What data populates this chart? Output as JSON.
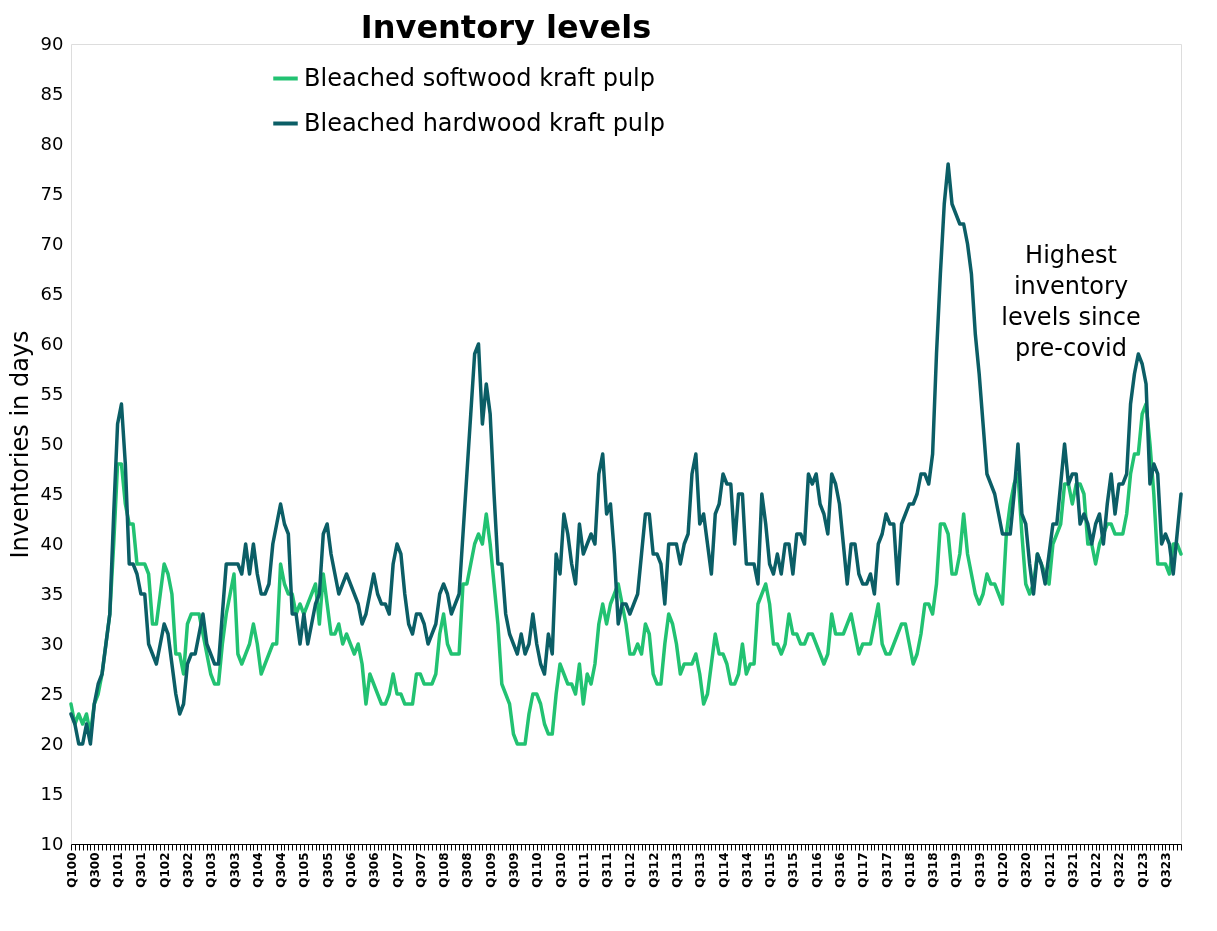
{
  "chart_data": {
    "type": "line",
    "title": "Inventory levels",
    "ylabel": "Inventories in days",
    "ylim": [
      10,
      90
    ],
    "yticks": [
      10,
      15,
      20,
      25,
      30,
      35,
      40,
      45,
      50,
      55,
      60,
      65,
      70,
      75,
      80,
      85,
      90
    ],
    "categories": [
      "Q100",
      null,
      null,
      null,
      null,
      null,
      "Q300",
      null,
      null,
      null,
      null,
      null,
      "Q101",
      null,
      null,
      null,
      null,
      null,
      "Q301",
      null,
      null,
      null,
      null,
      null,
      "Q102",
      null,
      null,
      null,
      null,
      null,
      "Q302",
      null,
      null,
      null,
      null,
      null,
      "Q103",
      null,
      null,
      null,
      null,
      null,
      "Q303",
      null,
      null,
      null,
      null,
      null,
      "Q104",
      null,
      null,
      null,
      null,
      null,
      "Q304",
      null,
      null,
      null,
      null,
      null,
      "Q105",
      null,
      null,
      null,
      null,
      null,
      "Q305",
      null,
      null,
      null,
      null,
      null,
      "Q106",
      null,
      null,
      null,
      null,
      null,
      "Q306",
      null,
      null,
      null,
      null,
      null,
      "Q107",
      null,
      null,
      null,
      null,
      null,
      "Q307",
      null,
      null,
      null,
      null,
      null,
      "Q108",
      null,
      null,
      null,
      null,
      null,
      "Q308",
      null,
      null,
      null,
      null,
      null,
      "Q109",
      null,
      null,
      null,
      null,
      null,
      "Q309",
      null,
      null,
      null,
      null,
      null,
      "Q110",
      null,
      null,
      null,
      null,
      null,
      "Q310",
      null,
      null,
      null,
      null,
      null,
      "Q111",
      null,
      null,
      null,
      null,
      null,
      "Q311",
      null,
      null,
      null,
      null,
      null,
      "Q112",
      null,
      null,
      null,
      null,
      null,
      "Q312",
      null,
      null,
      null,
      null,
      null,
      "Q113",
      null,
      null,
      null,
      null,
      null,
      "Q313",
      null,
      null,
      null,
      null,
      null,
      "Q114",
      null,
      null,
      null,
      null,
      null,
      "Q314",
      null,
      null,
      null,
      null,
      null,
      "Q115",
      null,
      null,
      null,
      null,
      null,
      "Q315",
      null,
      null,
      null,
      null,
      null,
      "Q116",
      null,
      null,
      null,
      null,
      null,
      "Q316",
      null,
      null,
      null,
      null,
      null,
      "Q117",
      null,
      null,
      null,
      null,
      null,
      "Q317",
      null,
      null,
      null,
      null,
      null,
      "Q118",
      null,
      null,
      null,
      null,
      null,
      "Q318",
      null,
      null,
      null,
      null,
      null,
      "Q119",
      null,
      null,
      null,
      null,
      null,
      "Q319",
      null,
      null,
      null,
      null,
      null,
      "Q120",
      null,
      null,
      null,
      null,
      null,
      "Q320",
      null,
      null,
      null,
      null,
      null,
      "Q121",
      null,
      null,
      null,
      null,
      null,
      "Q321",
      null,
      null,
      null,
      null,
      null,
      "Q122",
      null,
      null,
      null,
      null,
      null,
      "Q322",
      null,
      null,
      null,
      null,
      null,
      "Q123",
      null,
      null,
      null,
      null,
      null,
      "Q323",
      null,
      null,
      null,
      null
    ],
    "grid": false,
    "legend": "top",
    "annotations": [
      "Highest inventory levels since pre-covid"
    ],
    "series": [
      {
        "name": "Bleached softwood kraft pulp",
        "color": "#22c272",
        "values": [
          24,
          22,
          23,
          22,
          23,
          21,
          24,
          25,
          27,
          30,
          33,
          40,
          48,
          48,
          44,
          42,
          42,
          38,
          38,
          38,
          37,
          32,
          32,
          35,
          38,
          37,
          35,
          29,
          29,
          27,
          32,
          33,
          33,
          33,
          31,
          29,
          27,
          26,
          26,
          30,
          33,
          35,
          37,
          29,
          28,
          29,
          30,
          32,
          30,
          27,
          28,
          29,
          30,
          30,
          38,
          36,
          35,
          35,
          33,
          34,
          33,
          34,
          35,
          36,
          32,
          37,
          34,
          31,
          31,
          32,
          30,
          31,
          30,
          29,
          30,
          28,
          24,
          27,
          26,
          25,
          24,
          24,
          25,
          27,
          25,
          25,
          24,
          24,
          24,
          27,
          27,
          26,
          26,
          26,
          27,
          31,
          33,
          30,
          29,
          29,
          29,
          36,
          36,
          38,
          40,
          41,
          40,
          43,
          40,
          36,
          32,
          26,
          25,
          24,
          21,
          20,
          20,
          20,
          23,
          25,
          25,
          24,
          22,
          21,
          21,
          25,
          28,
          27,
          26,
          26,
          25,
          28,
          24,
          27,
          26,
          28,
          32,
          34,
          32,
          34,
          35,
          36,
          34,
          32,
          29,
          29,
          30,
          29,
          32,
          31,
          27,
          26,
          26,
          30,
          33,
          32,
          30,
          27,
          28,
          28,
          28,
          29,
          27,
          24,
          25,
          28,
          31,
          29,
          29,
          28,
          26,
          26,
          27,
          30,
          27,
          28,
          28,
          34,
          35,
          36,
          34,
          30,
          30,
          29,
          30,
          33,
          31,
          31,
          30,
          30,
          31,
          31,
          30,
          29,
          28,
          29,
          33,
          31,
          31,
          31,
          32,
          33,
          31,
          29,
          30,
          30,
          30,
          32,
          34,
          30,
          29,
          29,
          30,
          31,
          32,
          32,
          30,
          28,
          29,
          31,
          34,
          34,
          33,
          36,
          42,
          42,
          41,
          37,
          37,
          39,
          43,
          39,
          37,
          35,
          34,
          35,
          37,
          36,
          36,
          35,
          34,
          41,
          44,
          46,
          47,
          41,
          36,
          35,
          36,
          39,
          38,
          37,
          36,
          40,
          41,
          42,
          46,
          46,
          44,
          46,
          46,
          45,
          40,
          40,
          38,
          40,
          41,
          42,
          42,
          41,
          41,
          41,
          43,
          47,
          49,
          49,
          53,
          54,
          50,
          45,
          38,
          38,
          38,
          37,
          40,
          40,
          39
        ]
      },
      {
        "name": "Bleached hardwood kraft pulp",
        "color": "#0b5e66",
        "values": [
          23,
          22,
          20,
          20,
          22,
          20,
          24,
          26,
          27,
          30,
          33,
          43,
          52,
          54,
          48,
          38,
          38,
          37,
          35,
          35,
          30,
          29,
          28,
          30,
          32,
          31,
          28,
          25,
          23,
          24,
          28,
          29,
          29,
          31,
          33,
          30,
          29,
          28,
          28,
          33,
          38,
          38,
          38,
          38,
          37,
          40,
          37,
          40,
          37,
          35,
          35,
          36,
          40,
          42,
          44,
          42,
          41,
          33,
          33,
          30,
          33,
          30,
          32,
          34,
          35,
          41,
          42,
          39,
          37,
          35,
          36,
          37,
          36,
          35,
          34,
          32,
          33,
          35,
          37,
          35,
          34,
          34,
          33,
          38,
          40,
          39,
          35,
          32,
          31,
          33,
          33,
          32,
          30,
          31,
          32,
          35,
          36,
          35,
          33,
          34,
          35,
          41,
          47,
          53,
          59,
          60,
          52,
          56,
          53,
          45,
          38,
          38,
          33,
          31,
          30,
          29,
          31,
          29,
          30,
          33,
          30,
          28,
          27,
          31,
          29,
          39,
          37,
          43,
          41,
          38,
          36,
          42,
          39,
          40,
          41,
          40,
          47,
          49,
          43,
          44,
          39,
          32,
          34,
          34,
          33,
          34,
          35,
          39,
          43,
          43,
          39,
          39,
          38,
          34,
          40,
          40,
          40,
          38,
          40,
          41,
          47,
          49,
          42,
          43,
          40,
          37,
          43,
          44,
          47,
          46,
          46,
          40,
          45,
          45,
          38,
          38,
          38,
          36,
          45,
          42,
          38,
          37,
          39,
          37,
          40,
          40,
          37,
          41,
          41,
          40,
          47,
          46,
          47,
          44,
          43,
          41,
          47,
          46,
          44,
          40,
          36,
          40,
          40,
          37,
          36,
          36,
          37,
          35,
          40,
          41,
          43,
          42,
          42,
          36,
          42,
          43,
          44,
          44,
          45,
          47,
          47,
          46,
          49,
          59,
          67,
          74,
          78,
          74,
          73,
          72,
          72,
          70,
          67,
          61,
          57,
          52,
          47,
          46,
          45,
          43,
          41,
          41,
          41,
          45,
          50,
          43,
          42,
          38,
          35,
          39,
          38,
          36,
          39,
          42,
          42,
          46,
          50,
          46,
          47,
          47,
          42,
          43,
          42,
          40,
          42,
          43,
          40,
          44,
          47,
          43,
          46,
          46,
          47,
          54,
          57,
          59,
          58,
          56,
          46,
          48,
          47,
          40,
          41,
          40,
          37,
          41,
          45
        ]
      }
    ]
  }
}
